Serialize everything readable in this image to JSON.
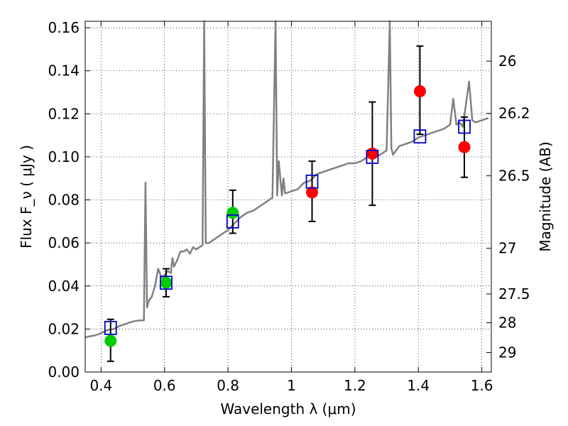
{
  "chart_data": {
    "type": "scatter",
    "xlabel": "Wavelength  λ (μm)",
    "ylabel": "Flux  F_ν  ( μJy )",
    "y2label": "Magnitude (AB)",
    "xlim": [
      0.35,
      1.63
    ],
    "ylim": [
      0.0,
      0.163
    ],
    "x_ticks": [
      0.4,
      0.6,
      0.8,
      1.0,
      1.2,
      1.4,
      1.6
    ],
    "x_tick_labels": [
      "0.4",
      "0.6",
      "0.8",
      "1",
      "1.2",
      "1.4",
      "1.6"
    ],
    "y_ticks": [
      0.0,
      0.02,
      0.04,
      0.06,
      0.08,
      0.1,
      0.12,
      0.14,
      0.16
    ],
    "y_tick_labels": [
      "0.00",
      "0.02",
      "0.04",
      "0.06",
      "0.08",
      "0.10",
      "0.12",
      "0.14",
      "0.16"
    ],
    "y2_ticks": [
      {
        "label": "26",
        "flux": 0.1445
      },
      {
        "label": "26.2",
        "flux": 0.1202
      },
      {
        "label": "26.5",
        "flux": 0.0912
      },
      {
        "label": "27",
        "flux": 0.0575
      },
      {
        "label": "27.5",
        "flux": 0.0363
      },
      {
        "label": "28",
        "flux": 0.0229
      },
      {
        "label": "29",
        "flux": 0.0091
      }
    ],
    "grid": true,
    "spectrum": {
      "color": "#808080",
      "x": [
        0.35,
        0.36,
        0.38,
        0.4,
        0.42,
        0.44,
        0.46,
        0.48,
        0.5,
        0.52,
        0.535,
        0.54,
        0.545,
        0.55,
        0.56,
        0.57,
        0.58,
        0.59,
        0.6,
        0.61,
        0.62,
        0.625,
        0.63,
        0.64,
        0.65,
        0.66,
        0.67,
        0.68,
        0.69,
        0.7,
        0.71,
        0.72,
        0.725,
        0.73,
        0.74,
        0.75,
        0.76,
        0.78,
        0.8,
        0.82,
        0.84,
        0.86,
        0.88,
        0.9,
        0.92,
        0.94,
        0.95,
        0.955,
        0.96,
        0.97,
        0.975,
        0.98,
        1.0,
        1.02,
        1.04,
        1.06,
        1.08,
        1.1,
        1.12,
        1.14,
        1.16,
        1.18,
        1.2,
        1.22,
        1.24,
        1.26,
        1.28,
        1.3,
        1.31,
        1.315,
        1.32,
        1.34,
        1.36,
        1.38,
        1.4,
        1.42,
        1.44,
        1.46,
        1.48,
        1.5,
        1.51,
        1.52,
        1.53,
        1.54,
        1.56,
        1.57,
        1.58,
        1.6,
        1.62
      ],
      "y": [
        0.016,
        0.0165,
        0.017,
        0.018,
        0.0195,
        0.02,
        0.0215,
        0.0225,
        0.0235,
        0.024,
        0.024,
        0.088,
        0.03,
        0.033,
        0.035,
        0.04,
        0.048,
        0.044,
        0.045,
        0.047,
        0.046,
        0.053,
        0.049,
        0.052,
        0.056,
        0.056,
        0.057,
        0.055,
        0.058,
        0.057,
        0.058,
        0.059,
        0.165,
        0.06,
        0.06,
        0.061,
        0.062,
        0.064,
        0.066,
        0.069,
        0.072,
        0.074,
        0.075,
        0.077,
        0.079,
        0.081,
        0.165,
        0.082,
        0.098,
        0.082,
        0.09,
        0.083,
        0.084,
        0.085,
        0.088,
        0.089,
        0.092,
        0.093,
        0.094,
        0.095,
        0.096,
        0.097,
        0.097,
        0.098,
        0.1,
        0.1,
        0.101,
        0.103,
        0.163,
        0.104,
        0.101,
        0.105,
        0.106,
        0.107,
        0.109,
        0.11,
        0.111,
        0.112,
        0.113,
        0.115,
        0.127,
        0.115,
        0.116,
        0.114,
        0.135,
        0.117,
        0.116,
        0.117,
        0.118
      ]
    },
    "series": [
      {
        "name": "",
        "marker": "circle",
        "color": "#00cc00",
        "points": [
          {
            "x": 0.43,
            "y": 0.0145,
            "err_low": 0.0095,
            "err_high": 0.01
          },
          {
            "x": 0.605,
            "y": 0.0415,
            "err_low": 0.0065,
            "err_high": 0.0065
          },
          {
            "x": 0.815,
            "y": 0.074,
            "err_low": 0.0095,
            "err_high": 0.0105
          }
        ]
      },
      {
        "name": "",
        "marker": "circle",
        "color": "#ff0000",
        "points": [
          {
            "x": 1.065,
            "y": 0.0835,
            "err_low": 0.0135,
            "err_high": 0.0145
          },
          {
            "x": 1.255,
            "y": 0.1015,
            "err_low": 0.024,
            "err_high": 0.024
          },
          {
            "x": 1.405,
            "y": 0.1305,
            "err_low": 0.02,
            "err_high": 0.021
          },
          {
            "x": 1.545,
            "y": 0.1045,
            "err_low": 0.014,
            "err_high": 0.014
          }
        ]
      },
      {
        "name": "",
        "marker": "open-square",
        "color": "#0000cc",
        "points": [
          {
            "x": 0.43,
            "y": 0.0205
          },
          {
            "x": 0.605,
            "y": 0.0415
          },
          {
            "x": 0.815,
            "y": 0.07
          },
          {
            "x": 1.065,
            "y": 0.0885
          },
          {
            "x": 1.255,
            "y": 0.1
          },
          {
            "x": 1.405,
            "y": 0.1095
          },
          {
            "x": 1.545,
            "y": 0.114
          }
        ]
      }
    ]
  }
}
